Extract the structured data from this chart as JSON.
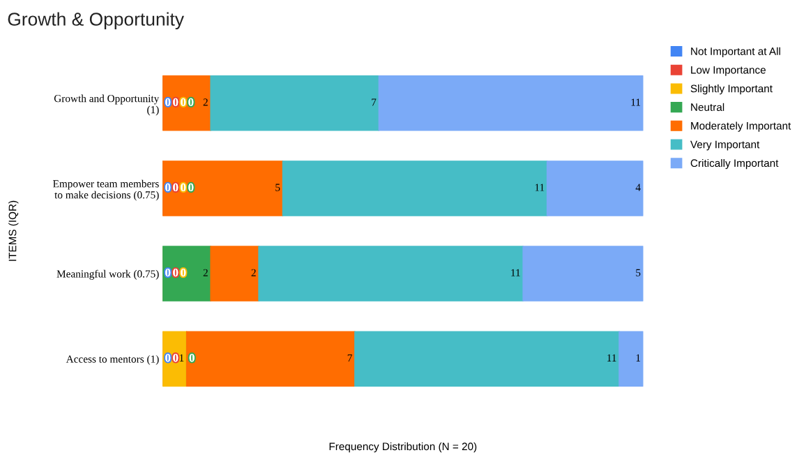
{
  "chart_data": {
    "type": "bar",
    "orientation": "horizontal",
    "stacked": true,
    "title": "Growth & Opportunity",
    "xlabel": "Frequency Distribution (N = 20)",
    "ylabel": "ITEMS (IQR)",
    "categories": [
      "Growth and Opportunity (1)",
      "Empower team members to make decisions (0.75)",
      "Meaningful work (0.75)",
      "Access to mentors (1)"
    ],
    "series": [
      {
        "name": "Not Important at All",
        "color": "#4285f4",
        "values": [
          0,
          0,
          0,
          0
        ],
        "value_labels": [
          null,
          null,
          null,
          null
        ]
      },
      {
        "name": "Low Importance",
        "color": "#ea4335",
        "values": [
          0,
          0,
          0,
          0
        ],
        "value_labels": [
          null,
          null,
          null,
          null
        ]
      },
      {
        "name": "Slightly Important",
        "color": "#fbbc04",
        "values": [
          0,
          0,
          0,
          1
        ],
        "value_labels": [
          null,
          null,
          null,
          "1"
        ]
      },
      {
        "name": "Neutral",
        "color": "#34a853",
        "values": [
          0,
          0,
          2,
          0
        ],
        "value_labels": [
          null,
          null,
          "2",
          null
        ]
      },
      {
        "name": "Moderately Important",
        "color": "#ff6d01",
        "values": [
          2,
          5,
          2,
          7
        ],
        "value_labels": [
          "2",
          "5",
          "2",
          "7"
        ]
      },
      {
        "name": "Very Important",
        "color": "#46bdc6",
        "values": [
          7,
          11,
          11,
          11
        ],
        "value_labels": [
          "7",
          "11",
          "11",
          "11"
        ]
      },
      {
        "name": "Critically Important",
        "color": "#7baaf7",
        "values": [
          11,
          4,
          5,
          1
        ],
        "value_labels": [
          "11",
          "4",
          "5",
          "1"
        ]
      }
    ],
    "annotations": [
      "0",
      "0",
      "0",
      "0",
      "0",
      "0",
      "0",
      "0",
      "0",
      "0",
      "0",
      "0",
      "0",
      "0"
    ],
    "xlim": [
      0,
      20
    ],
    "tick_labels": "y",
    "legend": "top right",
    "grid": false
  }
}
